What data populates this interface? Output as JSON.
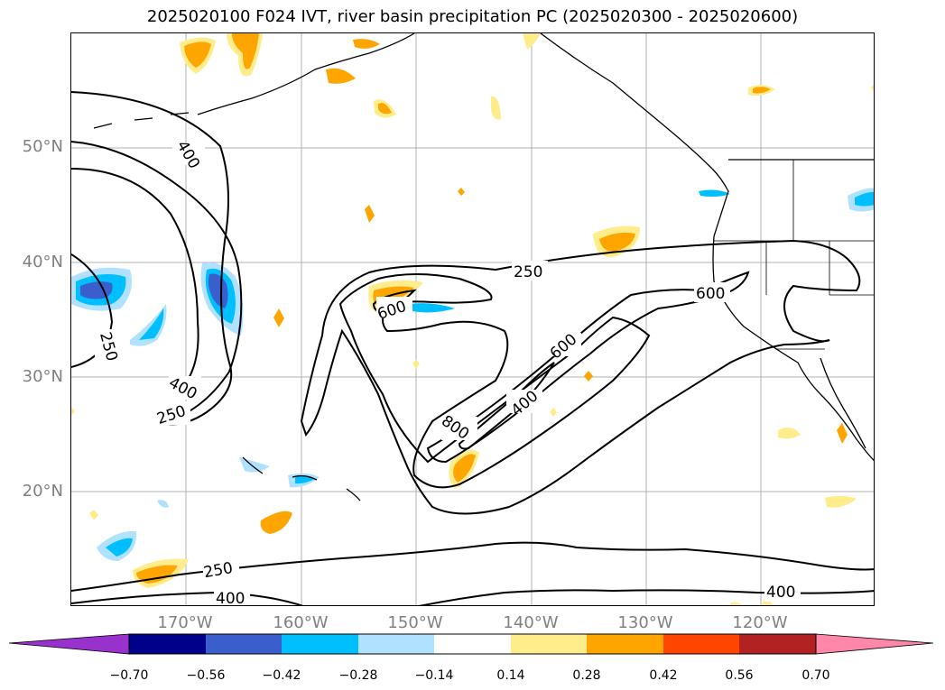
{
  "title": "2025020100 F024 IVT, river basin precipitation PC (2025020300 - 2025020600)",
  "map": {
    "lat_labels": [
      "50°N",
      "40°N",
      "30°N",
      "20°N"
    ],
    "lon_labels": [
      "170°W",
      "160°W",
      "150°W",
      "140°W",
      "130°W",
      "120°W"
    ],
    "contour_labels": [
      "400",
      "250",
      "400",
      "250",
      "250",
      "600",
      "600",
      "600",
      "400",
      "800",
      "250",
      "400",
      "400"
    ]
  },
  "colorbar": {
    "ticks": [
      "−0.70",
      "−0.56",
      "−0.42",
      "−0.28",
      "−0.14",
      "0.14",
      "0.28",
      "0.42",
      "0.56",
      "0.70"
    ],
    "colors": {
      "under": "#9932cc",
      "neg_070": "#00008b",
      "neg_056": "#3a5fcd",
      "neg_042": "#00bfff",
      "neg_028": "#b0e2ff",
      "neutral": "#ffffff",
      "pos_014": "#ffec8b",
      "pos_028": "#ffa500",
      "pos_042": "#ff4500",
      "pos_056": "#b22222",
      "over": "#ff88aa"
    }
  }
}
